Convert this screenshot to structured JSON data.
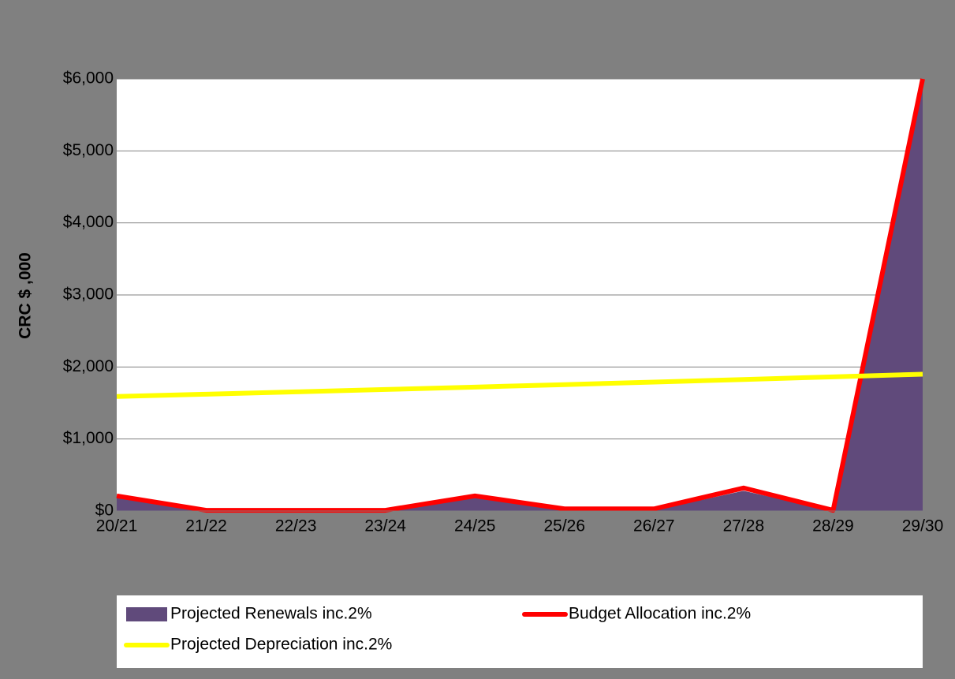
{
  "chart_data": {
    "type": "area_line",
    "y_label": "CRC $ ,000",
    "categories": [
      "20/21",
      "21/22",
      "22/23",
      "23/24",
      "24/25",
      "25/26",
      "26/27",
      "27/28",
      "28/29",
      "29/30"
    ],
    "series": [
      {
        "name": "Projected Renewals inc.2%",
        "color": "#604a7b",
        "kind": "area",
        "values": [
          180,
          0,
          0,
          0,
          180,
          10,
          10,
          280,
          0,
          6000
        ]
      },
      {
        "name": "Budget Allocation inc.2%",
        "color": "#ff0000",
        "kind": "line",
        "values": [
          210,
          10,
          10,
          10,
          210,
          30,
          30,
          320,
          10,
          6000
        ]
      },
      {
        "name": "Projected Depreciation inc.2%",
        "color": "#ffff00",
        "kind": "line",
        "values": [
          1590,
          1622,
          1654,
          1687,
          1721,
          1755,
          1790,
          1826,
          1863,
          1900
        ]
      }
    ],
    "ylim": [
      0,
      6000
    ],
    "yticks": [
      {
        "value": 0,
        "label": "$0"
      },
      {
        "value": 1000,
        "label": "$1,000"
      },
      {
        "value": 2000,
        "label": "$2,000"
      },
      {
        "value": 3000,
        "label": "$3,000"
      },
      {
        "value": 4000,
        "label": "$4,000"
      },
      {
        "value": 5000,
        "label": "$5,000"
      },
      {
        "value": 6000,
        "label": "$6,000"
      }
    ],
    "grid": true
  }
}
